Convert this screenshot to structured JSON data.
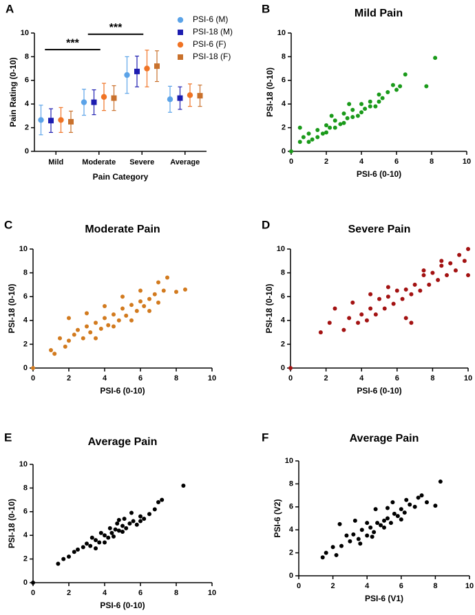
{
  "chart_data": [
    {
      "type": "errorbar",
      "label": "A",
      "xlabel": "Pain Category",
      "ylabel": "Pain Rating (0-10)",
      "categories": [
        "Mild",
        "Moderate",
        "Severe",
        "Average"
      ],
      "series": [
        {
          "name": "PSI-6 (M)",
          "color": "#5ba3e8",
          "marker": "circle",
          "values": [
            2.65,
            4.15,
            6.45,
            4.4
          ],
          "errors": [
            1.25,
            1.1,
            1.55,
            1.1
          ]
        },
        {
          "name": "PSI-18 (M)",
          "color": "#1c1cb0",
          "marker": "square",
          "values": [
            2.6,
            4.15,
            6.75,
            4.5
          ],
          "errors": [
            1.0,
            1.05,
            1.3,
            0.95
          ]
        },
        {
          "name": "PSI-6 (F)",
          "color": "#f07324",
          "marker": "circle",
          "values": [
            2.65,
            4.6,
            7.0,
            4.75
          ],
          "errors": [
            1.05,
            1.15,
            1.55,
            0.95
          ]
        },
        {
          "name": "PSI-18 (F)",
          "color": "#c9712c",
          "marker": "square",
          "values": [
            2.5,
            4.5,
            7.2,
            4.7
          ],
          "errors": [
            0.9,
            1.05,
            1.3,
            0.9
          ]
        }
      ],
      "annotations": [
        "***",
        "***"
      ],
      "ylim": [
        0,
        10
      ],
      "yticks": [
        0,
        2,
        4,
        6,
        8,
        10
      ]
    },
    {
      "type": "scatter",
      "label": "B",
      "title": "Mild Pain",
      "xlabel": "PSI-6 (0-10)",
      "ylabel": "PSI-18 (0-10)",
      "color": "#1a9a1a",
      "x": [
        0,
        0.5,
        0.7,
        1,
        1.2,
        1.5,
        1.8,
        2,
        2.2,
        2.5,
        2.8,
        3,
        3.2,
        3.5,
        3.8,
        4,
        4.2,
        4.5,
        4.8,
        5,
        5.2,
        5.5,
        5.8,
        6,
        6.2,
        6.5,
        1,
        1.5,
        2,
        2.5,
        3,
        3.5,
        4,
        4.5,
        5,
        7.7,
        8.2,
        0.5,
        2.3,
        3.3
      ],
      "y": [
        0,
        0.8,
        1.2,
        1.5,
        1.0,
        1.8,
        1.5,
        2.2,
        2.0,
        2.6,
        2.3,
        3.2,
        2.8,
        3.5,
        3.0,
        4.0,
        3.6,
        4.2,
        3.8,
        4.8,
        4.5,
        5.0,
        5.6,
        5.2,
        5.5,
        6.5,
        0.8,
        1.2,
        1.6,
        2.0,
        2.4,
        2.9,
        3.3,
        3.8,
        4.2,
        5.5,
        7.9,
        2.0,
        3.0,
        4.0
      ],
      "xlim": [
        0,
        10
      ],
      "ylim": [
        0,
        10
      ],
      "xticks": [
        0,
        2,
        4,
        6,
        8,
        10
      ],
      "yticks": [
        0,
        2,
        4,
        6,
        8,
        10
      ]
    },
    {
      "type": "scatter",
      "label": "C",
      "title": "Moderate Pain",
      "xlabel": "PSI-6 (0-10)",
      "ylabel": "PSI-18 (0-10)",
      "color": "#d27a1e",
      "x": [
        0,
        1,
        1.2,
        1.5,
        1.8,
        2,
        2.3,
        2.5,
        2.8,
        3,
        3.2,
        3.5,
        3.8,
        4,
        4.2,
        4.5,
        4.8,
        5,
        5.2,
        5.5,
        5.8,
        6,
        6.2,
        6.5,
        6.8,
        7,
        7.3,
        7.5,
        8,
        8.5,
        2,
        3,
        4,
        5,
        6,
        7,
        3.5,
        4.5,
        5.5,
        6.5
      ],
      "y": [
        0,
        1.5,
        1.2,
        2.5,
        1.8,
        2.3,
        2.8,
        3.2,
        2.5,
        3.5,
        3.0,
        3.8,
        3.3,
        4.2,
        3.6,
        4.5,
        4.0,
        5.0,
        4.4,
        5.3,
        4.8,
        5.6,
        5.2,
        5.8,
        6.2,
        7.2,
        6.5,
        7.6,
        6.4,
        6.6,
        4.2,
        4.6,
        5.2,
        6.0,
        6.5,
        5.5,
        2.5,
        3.5,
        4.0,
        4.8
      ],
      "xlim": [
        0,
        10
      ],
      "ylim": [
        0,
        10
      ],
      "xticks": [
        0,
        2,
        4,
        6,
        8,
        10
      ],
      "yticks": [
        0,
        2,
        4,
        6,
        8,
        10
      ]
    },
    {
      "type": "scatter",
      "label": "D",
      "title": "Severe Pain",
      "xlabel": "PSI-6 (0-10)",
      "ylabel": "PSI-18 (0-10)",
      "color": "#a31212",
      "x": [
        0,
        1.7,
        2.2,
        2.5,
        3,
        3.3,
        3.5,
        3.8,
        4,
        4.3,
        4.5,
        4.8,
        5,
        5.3,
        5.5,
        5.8,
        6,
        6.3,
        6.5,
        6.8,
        7,
        7.3,
        7.5,
        7.8,
        8,
        8.3,
        8.5,
        8.8,
        9,
        9.3,
        9.5,
        9.8,
        10,
        10,
        6.5,
        6.8,
        4.5,
        5.5,
        7.5,
        8.5
      ],
      "y": [
        0,
        3.0,
        3.8,
        5.0,
        3.2,
        4.2,
        5.5,
        3.8,
        4.5,
        4.0,
        5.0,
        4.5,
        5.8,
        5.0,
        6.0,
        5.4,
        6.5,
        5.8,
        6.6,
        6.2,
        7.0,
        6.5,
        7.8,
        7.0,
        8.0,
        7.4,
        8.6,
        7.8,
        8.8,
        8.2,
        9.5,
        9.0,
        10,
        7.8,
        4.2,
        3.8,
        6.2,
        6.8,
        8.2,
        9.0
      ],
      "xlim": [
        0,
        10
      ],
      "ylim": [
        0,
        10
      ],
      "xticks": [
        0,
        2,
        4,
        6,
        8,
        10
      ],
      "yticks": [
        0,
        2,
        4,
        6,
        8,
        10
      ]
    },
    {
      "type": "scatter",
      "label": "E",
      "title": "Average Pain",
      "xlabel": "PSI-6 (0-10)",
      "ylabel": "PSI-18 (0-10)",
      "color": "#000000",
      "x": [
        0,
        1.4,
        1.7,
        2,
        2.3,
        2.5,
        2.8,
        3,
        3.2,
        3.5,
        3.7,
        4,
        4.2,
        4.4,
        4.6,
        4.8,
        5,
        5.2,
        5.4,
        5.6,
        5.8,
        6,
        6.2,
        6.5,
        6.8,
        7,
        7.2,
        8.4,
        3.3,
        3.8,
        4.3,
        4.7,
        5.1,
        5.5,
        4,
        4.5,
        5,
        6,
        3.5,
        4.8
      ],
      "y": [
        0,
        1.6,
        2.0,
        2.2,
        2.6,
        2.8,
        3.0,
        3.3,
        3.1,
        3.6,
        3.4,
        4.0,
        3.8,
        4.2,
        4.5,
        4.4,
        4.8,
        4.6,
        5.0,
        5.2,
        4.9,
        5.6,
        5.4,
        5.8,
        6.2,
        6.8,
        7.0,
        8.2,
        3.8,
        4.2,
        4.6,
        5.0,
        5.4,
        5.9,
        3.4,
        3.9,
        4.3,
        5.2,
        2.9,
        5.3
      ],
      "xlim": [
        0,
        10
      ],
      "ylim": [
        0,
        10
      ],
      "xticks": [
        0,
        2,
        4,
        6,
        8,
        10
      ],
      "yticks": [
        0,
        2,
        4,
        6,
        8,
        10
      ]
    },
    {
      "type": "scatter",
      "label": "F",
      "title": "Average Pain",
      "xlabel": "PSI-6 (V1)",
      "ylabel": "PSI-6 (V2)",
      "color": "#000000",
      "x": [
        1.4,
        1.6,
        2,
        2.2,
        2.5,
        2.8,
        3,
        3.2,
        3.5,
        3.7,
        4,
        4.2,
        4.4,
        4.6,
        4.8,
        5,
        5.2,
        5.4,
        5.6,
        5.8,
        6,
        6.2,
        6.5,
        6.8,
        7,
        7.5,
        8,
        8.3,
        2.4,
        3.3,
        4,
        4.5,
        5,
        5.5,
        6,
        3.6,
        4.3,
        5.2,
        6.3,
        7.2
      ],
      "y": [
        1.6,
        2.0,
        2.5,
        1.8,
        2.6,
        3.5,
        3.0,
        3.6,
        3.2,
        4.0,
        3.5,
        4.2,
        3.8,
        4.6,
        4.4,
        4.8,
        5.0,
        4.6,
        5.4,
        5.2,
        5.8,
        5.5,
        6.2,
        6.0,
        6.8,
        6.4,
        6.1,
        8.2,
        4.5,
        4.8,
        4.6,
        5.8,
        4.2,
        6.4,
        4.9,
        2.8,
        3.4,
        5.9,
        6.6,
        7.0
      ],
      "xlim": [
        0,
        10
      ],
      "ylim": [
        0,
        10
      ],
      "xticks": [
        0,
        2,
        4,
        6,
        8,
        10
      ],
      "yticks": [
        0,
        2,
        4,
        6,
        8,
        10
      ]
    }
  ]
}
